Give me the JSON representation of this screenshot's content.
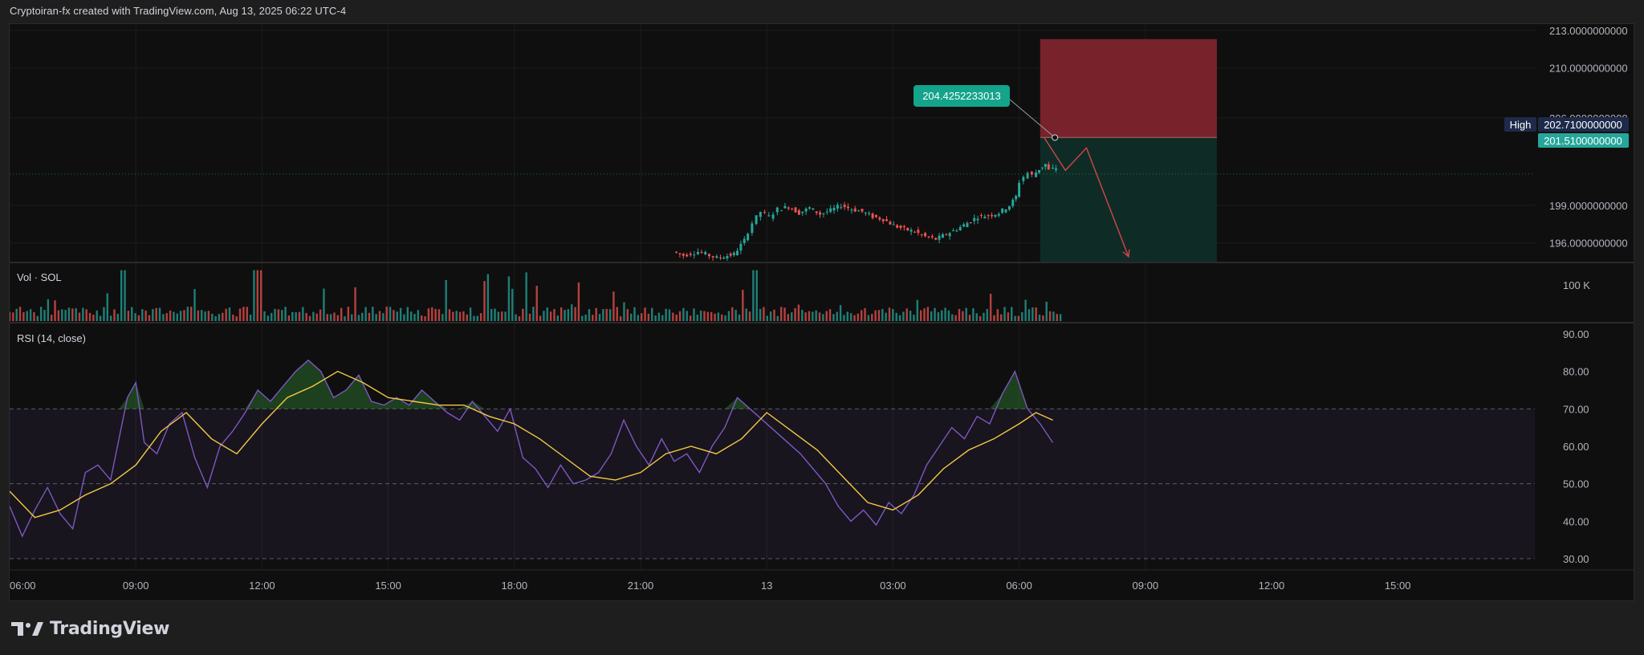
{
  "header": {
    "attribution": "Cryptoiran-fx created with TradingView.com, Aug 13, 2025 06:22 UTC-4"
  },
  "footer": {
    "brand": "TradingView"
  },
  "colors": {
    "up": "#26a69a",
    "down": "#ef5350",
    "rsi": "#7e57c2",
    "rsi_ma": "#f3c845",
    "short_loss": "#8b2630",
    "short_profit": "#0f2e27",
    "annotation": "#14a38b"
  },
  "price_axis": {
    "ticks": [
      "213.0000000000",
      "210.0000000000",
      "206.0000000000",
      "199.0000000000",
      "196.0000000000"
    ],
    "high_tag": "High",
    "high_value": "202.7100000000",
    "last_value": "201.5100000000"
  },
  "annotation": {
    "value": "204.4252233013"
  },
  "volume": {
    "label": "Vol · SOL",
    "axis_tick": "100 K"
  },
  "rsi": {
    "label": "RSI (14, close)",
    "ticks": [
      "90.00",
      "80.00",
      "70.00",
      "60.00",
      "50.00",
      "40.00",
      "30.00"
    ]
  },
  "time_axis": {
    "labels": [
      "06:00",
      "09:00",
      "12:00",
      "15:00",
      "18:00",
      "21:00",
      "13",
      "03:00",
      "06:00",
      "09:00",
      "12:00",
      "15:00"
    ]
  },
  "chart_data": [
    {
      "type": "candlestick",
      "title": "",
      "symbol_hint": "SOL",
      "ylim": [
        194.5,
        213.5
      ],
      "y_ticks": [
        213,
        210,
        206,
        199,
        196
      ],
      "x_hours": [
        6,
        34
      ],
      "high": 202.71,
      "last": 201.51,
      "annotation_level": 204.4252233013,
      "short_position": {
        "entry": 204.43,
        "stop": 212.3,
        "target": 194.5
      },
      "projection": [
        [
          30.6,
          204.4
        ],
        [
          31.1,
          201.8
        ],
        [
          31.6,
          203.6
        ],
        [
          32.6,
          194.9
        ]
      ],
      "candles_close_path": [
        [
          21.85,
          195.3
        ],
        [
          22.1,
          195.0
        ],
        [
          22.45,
          195.3
        ],
        [
          22.9,
          194.8
        ],
        [
          23.3,
          195.1
        ],
        [
          23.55,
          196.2
        ],
        [
          23.75,
          197.6
        ],
        [
          23.95,
          198.5
        ],
        [
          24.15,
          198.1
        ],
        [
          24.35,
          198.7
        ],
        [
          24.6,
          198.9
        ],
        [
          24.85,
          198.4
        ],
        [
          25.1,
          198.8
        ],
        [
          25.35,
          198.3
        ],
        [
          25.6,
          198.6
        ],
        [
          25.85,
          199.0
        ],
        [
          26.1,
          198.7
        ],
        [
          26.35,
          198.5
        ],
        [
          26.6,
          198.1
        ],
        [
          26.85,
          197.9
        ],
        [
          27.1,
          197.4
        ],
        [
          27.35,
          197.1
        ],
        [
          27.6,
          196.9
        ],
        [
          27.85,
          196.5
        ],
        [
          28.1,
          196.3
        ],
        [
          28.35,
          196.7
        ],
        [
          28.6,
          197.1
        ],
        [
          28.85,
          197.6
        ],
        [
          29.1,
          198.1
        ],
        [
          29.35,
          198.2
        ],
        [
          29.6,
          198.4
        ],
        [
          29.85,
          199.0
        ],
        [
          30.0,
          199.7
        ],
        [
          30.1,
          200.9
        ],
        [
          30.2,
          201.3
        ],
        [
          30.3,
          201.6
        ],
        [
          30.4,
          201.4
        ],
        [
          30.55,
          201.9
        ],
        [
          30.7,
          202.3
        ],
        [
          30.8,
          201.8
        ],
        [
          30.95,
          202.0
        ]
      ]
    },
    {
      "type": "bar",
      "title": "Vol · SOL",
      "ylim": [
        0,
        150000
      ],
      "y_ticks": [
        100000
      ],
      "x_hours": [
        6,
        31
      ]
    },
    {
      "type": "line",
      "title": "RSI (14, close)",
      "ylim": [
        27,
        93
      ],
      "y_ticks": [
        90,
        80,
        70,
        60,
        50,
        40,
        30
      ],
      "bands": [
        30,
        50,
        70
      ],
      "series": [
        {
          "name": "",
          "color": "#7e57c2",
          "points": [
            [
              6.0,
              44
            ],
            [
              6.3,
              36
            ],
            [
              6.6,
              43
            ],
            [
              6.9,
              49
            ],
            [
              7.2,
              42
            ],
            [
              7.5,
              38
            ],
            [
              7.8,
              53
            ],
            [
              8.1,
              55
            ],
            [
              8.4,
              51
            ],
            [
              8.6,
              62
            ],
            [
              8.8,
              73
            ],
            [
              9.0,
              77
            ],
            [
              9.2,
              61
            ],
            [
              9.5,
              58
            ],
            [
              9.8,
              66
            ],
            [
              10.1,
              69
            ],
            [
              10.4,
              57
            ],
            [
              10.7,
              49
            ],
            [
              11.0,
              60
            ],
            [
              11.3,
              64
            ],
            [
              11.6,
              69
            ],
            [
              11.9,
              75
            ],
            [
              12.2,
              72
            ],
            [
              12.5,
              76
            ],
            [
              12.8,
              80
            ],
            [
              13.1,
              83
            ],
            [
              13.4,
              80
            ],
            [
              13.7,
              73
            ],
            [
              14.0,
              75
            ],
            [
              14.3,
              79
            ],
            [
              14.6,
              72
            ],
            [
              14.9,
              71
            ],
            [
              15.2,
              73
            ],
            [
              15.5,
              71
            ],
            [
              15.8,
              75
            ],
            [
              16.1,
              72
            ],
            [
              16.4,
              69
            ],
            [
              16.7,
              67
            ],
            [
              17.0,
              72
            ],
            [
              17.3,
              68
            ],
            [
              17.6,
              64
            ],
            [
              17.9,
              70
            ],
            [
              18.2,
              57
            ],
            [
              18.5,
              54
            ],
            [
              18.8,
              49
            ],
            [
              19.1,
              55
            ],
            [
              19.4,
              50
            ],
            [
              19.7,
              51
            ],
            [
              20.0,
              53
            ],
            [
              20.3,
              58
            ],
            [
              20.6,
              67
            ],
            [
              20.9,
              60
            ],
            [
              21.2,
              55
            ],
            [
              21.5,
              62
            ],
            [
              21.8,
              56
            ],
            [
              22.1,
              58
            ],
            [
              22.4,
              53
            ],
            [
              22.7,
              60
            ],
            [
              23.0,
              65
            ],
            [
              23.3,
              73
            ],
            [
              23.6,
              70
            ],
            [
              23.9,
              67
            ],
            [
              24.2,
              64
            ],
            [
              24.5,
              61
            ],
            [
              24.8,
              58
            ],
            [
              25.1,
              54
            ],
            [
              25.4,
              50
            ],
            [
              25.7,
              44
            ],
            [
              26.0,
              40
            ],
            [
              26.3,
              43
            ],
            [
              26.6,
              39
            ],
            [
              26.9,
              45
            ],
            [
              27.2,
              42
            ],
            [
              27.5,
              47
            ],
            [
              27.8,
              55
            ],
            [
              28.1,
              60
            ],
            [
              28.4,
              65
            ],
            [
              28.7,
              62
            ],
            [
              29.0,
              68
            ],
            [
              29.3,
              66
            ],
            [
              29.6,
              74
            ],
            [
              29.9,
              80
            ],
            [
              30.2,
              70
            ],
            [
              30.5,
              66
            ],
            [
              30.8,
              61
            ]
          ]
        },
        {
          "name": "",
          "color": "#f3c845",
          "points": [
            [
              6.0,
              48
            ],
            [
              6.6,
              41
            ],
            [
              7.2,
              43
            ],
            [
              7.8,
              47
            ],
            [
              8.4,
              50
            ],
            [
              9.0,
              55
            ],
            [
              9.6,
              64
            ],
            [
              10.2,
              69
            ],
            [
              10.8,
              62
            ],
            [
              11.4,
              58
            ],
            [
              12.0,
              66
            ],
            [
              12.6,
              73
            ],
            [
              13.2,
              76
            ],
            [
              13.8,
              80
            ],
            [
              14.4,
              77
            ],
            [
              15.0,
              73
            ],
            [
              15.6,
              72
            ],
            [
              16.2,
              71
            ],
            [
              16.8,
              71
            ],
            [
              17.4,
              68
            ],
            [
              18.0,
              66
            ],
            [
              18.6,
              62
            ],
            [
              19.2,
              57
            ],
            [
              19.8,
              52
            ],
            [
              20.4,
              51
            ],
            [
              21.0,
              53
            ],
            [
              21.6,
              58
            ],
            [
              22.2,
              60
            ],
            [
              22.8,
              58
            ],
            [
              23.4,
              62
            ],
            [
              24.0,
              69
            ],
            [
              24.6,
              64
            ],
            [
              25.2,
              59
            ],
            [
              25.8,
              52
            ],
            [
              26.4,
              45
            ],
            [
              27.0,
              43
            ],
            [
              27.6,
              47
            ],
            [
              28.2,
              54
            ],
            [
              28.8,
              59
            ],
            [
              29.4,
              62
            ],
            [
              30.0,
              66
            ],
            [
              30.4,
              69
            ],
            [
              30.8,
              67
            ]
          ]
        }
      ]
    }
  ]
}
